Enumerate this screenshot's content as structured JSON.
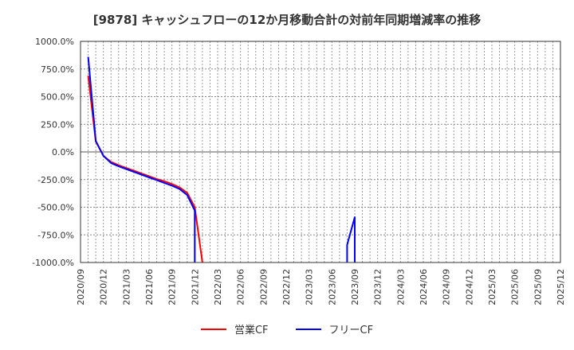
{
  "title": "[9878]  キャッシュフローの12か月移動合計の対前年同期増減率の推移",
  "chart_data": {
    "type": "line",
    "title": "[9878]  キャッシュフローの12か月移動合計の対前年同期増減率の推移",
    "xlabel": "",
    "ylabel": "",
    "ylim": [
      -1000,
      1000
    ],
    "grid": true,
    "legend_position": "bottom",
    "y_ticks": [
      "1000.0%",
      "750.0%",
      "500.0%",
      "250.0%",
      "0.0%",
      "-250.0%",
      "-500.0%",
      "-750.0%",
      "-1000.0%"
    ],
    "x_ticks": [
      "2020/09",
      "2020/12",
      "2021/03",
      "2021/06",
      "2021/09",
      "2021/12",
      "2022/03",
      "2022/06",
      "2022/09",
      "2022/12",
      "2023/03",
      "2023/06",
      "2023/09",
      "2023/12",
      "2024/03",
      "2024/06",
      "2024/09",
      "2024/12",
      "2025/03",
      "2025/06",
      "2025/09",
      "2025/12"
    ],
    "x_range": [
      "2020/09",
      "2025/12"
    ],
    "series": [
      {
        "name": "営業CF",
        "color": "#ff0000",
        "points": [
          [
            "2020/10",
            690
          ],
          [
            "2020/11",
            95
          ],
          [
            "2020/12",
            -35
          ],
          [
            "2021/01",
            -90
          ],
          [
            "2021/02",
            -120
          ],
          [
            "2021/03",
            -145
          ],
          [
            "2021/04",
            -170
          ],
          [
            "2021/05",
            -195
          ],
          [
            "2021/06",
            -220
          ],
          [
            "2021/07",
            -245
          ],
          [
            "2021/08",
            -265
          ],
          [
            "2021/09",
            -290
          ],
          [
            "2021/10",
            -320
          ],
          [
            "2021/11",
            -370
          ],
          [
            "2021/12",
            -500
          ],
          [
            "2022/01",
            -1000
          ]
        ]
      },
      {
        "name": "フリーCF",
        "color": "#0000ff",
        "points": [
          [
            "2020/10",
            860
          ],
          [
            "2020/11",
            100
          ],
          [
            "2020/12",
            -35
          ],
          [
            "2021/01",
            -100
          ],
          [
            "2021/02",
            -130
          ],
          [
            "2021/03",
            -155
          ],
          [
            "2021/04",
            -180
          ],
          [
            "2021/05",
            -205
          ],
          [
            "2021/06",
            -230
          ],
          [
            "2021/07",
            -255
          ],
          [
            "2021/08",
            -280
          ],
          [
            "2021/09",
            -305
          ],
          [
            "2021/10",
            -335
          ],
          [
            "2021/11",
            -390
          ],
          [
            "2021/12",
            -530
          ],
          [
            "2021/12",
            -1000
          ]
        ],
        "points_segment_2": [
          [
            "2023/08",
            -1000
          ],
          [
            "2023/08",
            -840
          ],
          [
            "2023/09",
            -590
          ],
          [
            "2023/09",
            -1000
          ]
        ]
      }
    ]
  },
  "legend": {
    "items": [
      {
        "label": "営業CF",
        "color": "#ff0000"
      },
      {
        "label": "フリーCF",
        "color": "#0000ff"
      }
    ]
  }
}
